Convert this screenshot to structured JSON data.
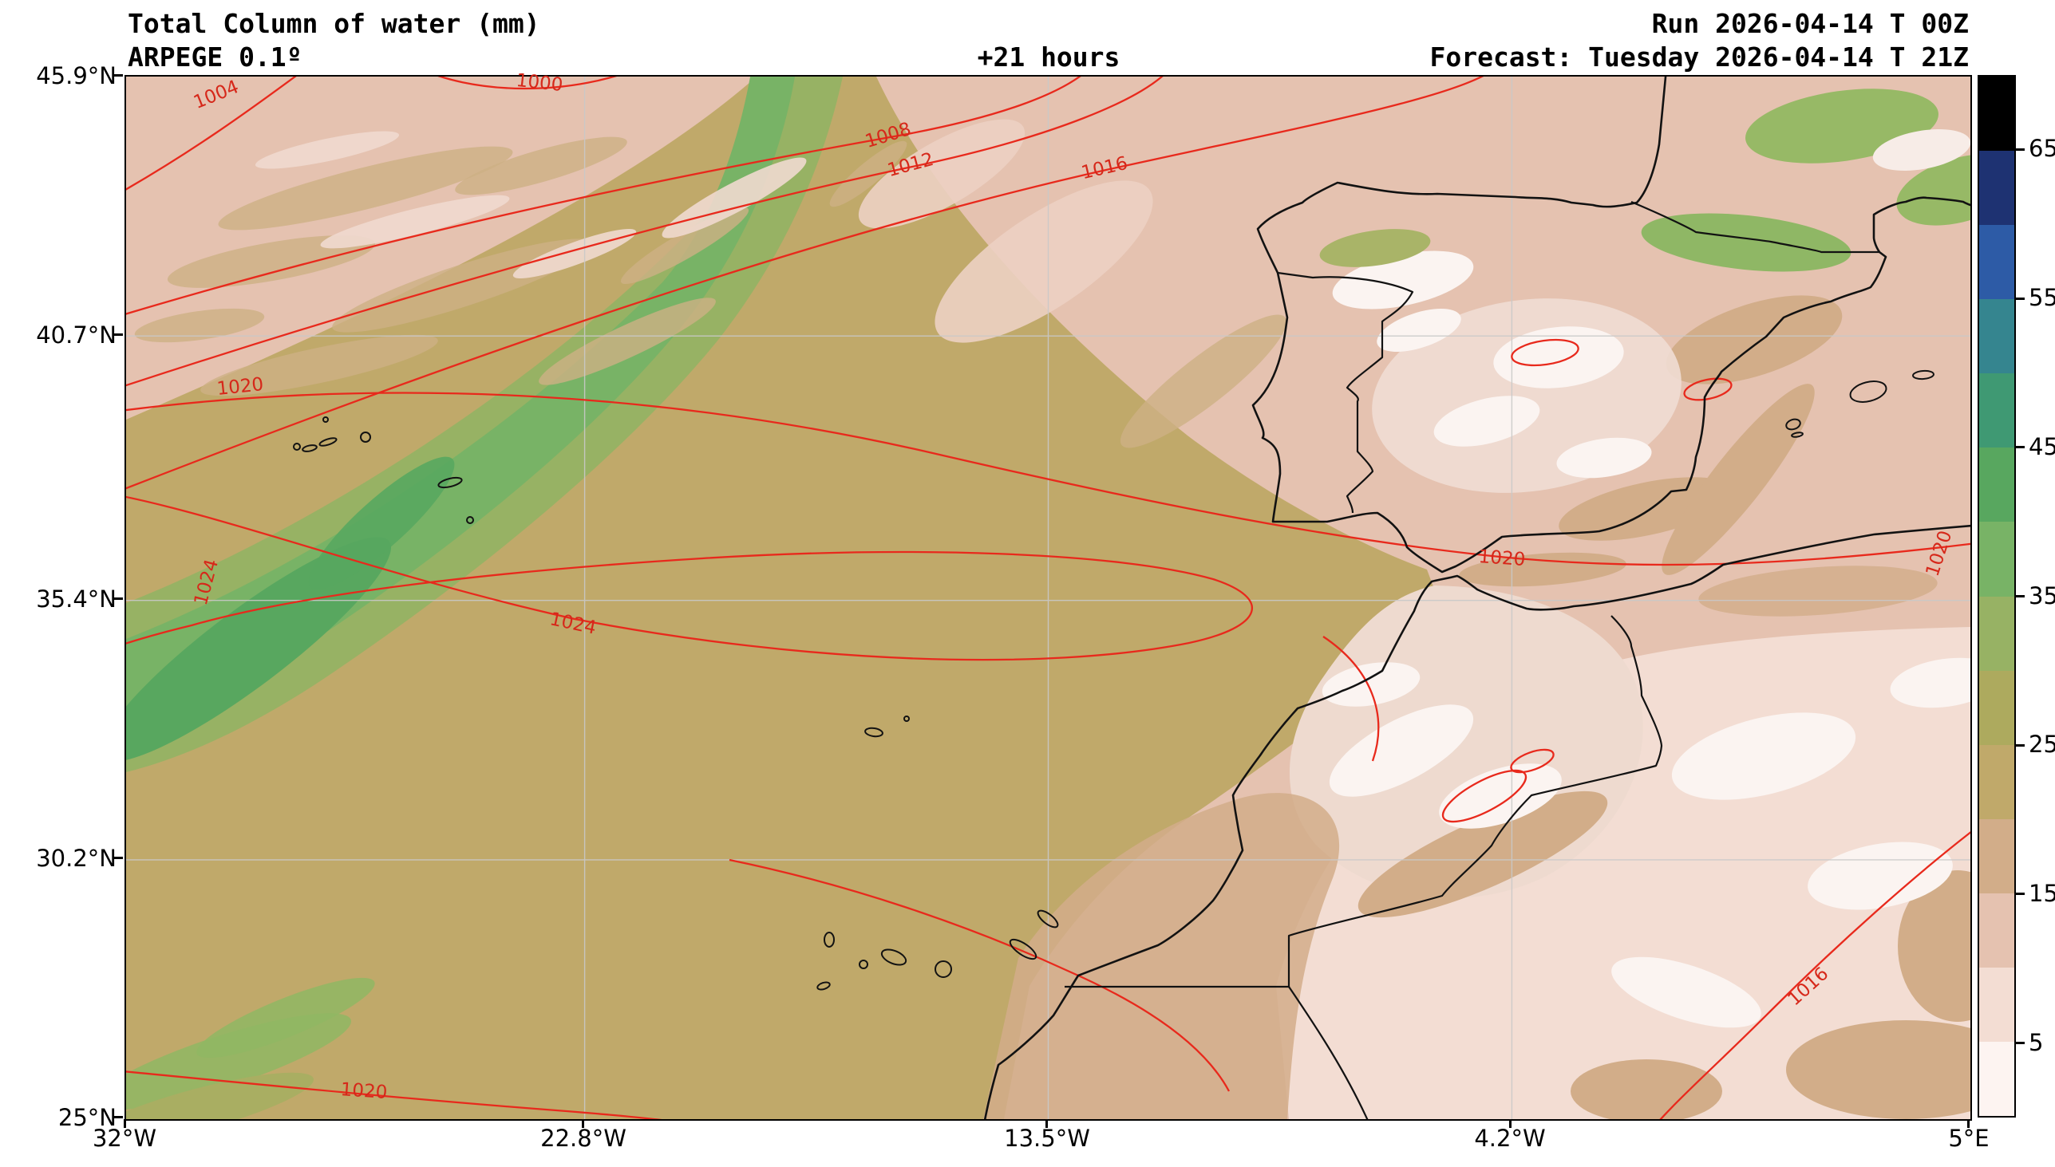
{
  "header": {
    "title": "Total Column of water (mm)",
    "model": "ARPEGE 0.1º",
    "lead_time": "+21 hours",
    "run": "Run 2026-04-14 T 00Z",
    "valid": "Forecast: Tuesday 2026-04-14 T 21Z"
  },
  "axes": {
    "x_ticks": [
      "32°W",
      "22.8°W",
      "13.5°W",
      "4.2°W",
      "5°E"
    ],
    "y_ticks": [
      "45.9°N",
      "40.7°N",
      "35.4°N",
      "30.2°N",
      "25°N"
    ]
  },
  "colorbar": {
    "unit": "mm",
    "tick_labels": [
      "65",
      "55",
      "45",
      "35",
      "25",
      "15",
      "5"
    ],
    "levels": [
      0,
      5,
      10,
      15,
      20,
      25,
      30,
      35,
      40,
      45,
      50,
      55,
      60,
      65,
      70
    ],
    "colors_bottom_to_top": [
      "#fdf4f1",
      "#f3ddd3",
      "#e5c2b0",
      "#d2ad89",
      "#c0a96a",
      "#adaa5e",
      "#97b264",
      "#78b366",
      "#58a75f",
      "#3f9973",
      "#35858f",
      "#2d5ba6",
      "#1e3272",
      "#000000"
    ]
  },
  "isobars": {
    "color": "#e8291c",
    "values_hpa": [
      1000,
      1004,
      1008,
      1012,
      1016,
      1020,
      1024
    ],
    "labels": [
      "1004",
      "1000",
      "1008",
      "1012",
      "1016",
      "1020",
      "1024",
      "1024",
      "1020",
      "1020",
      "1016",
      "1020"
    ]
  },
  "map_data": {
    "type": "filled-contour weather map",
    "variable": "Total column of water",
    "unit": "mm",
    "model": "ARPEGE",
    "resolution_deg": 0.1,
    "region": "North-East Atlantic, Iberian Peninsula, North-West Africa",
    "lon_range_deg": [
      -32,
      5
    ],
    "lat_range_deg": [
      25,
      45.9
    ],
    "overlay": "Mean sea level pressure isobars (hPa)",
    "coastline_color": "#121212",
    "gridline_color": "#c9c9c9"
  }
}
